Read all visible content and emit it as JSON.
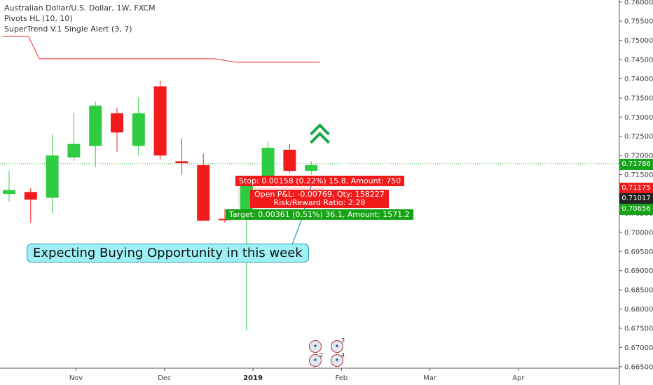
{
  "legend": {
    "title": "Australian Dollar/U.S. Dollar, 1W, FXCM",
    "indicator1": "Pivots HL (10, 10)",
    "indicator2": "SuperTrend V.1 Single Alert (3, 7)"
  },
  "chart_data": {
    "type": "candlestick",
    "ylim": [
      0.6646,
      0.7605
    ],
    "y_ticks": [
      "0.76000",
      "0.75500",
      "0.75000",
      "0.74500",
      "0.74000",
      "0.73500",
      "0.73000",
      "0.72500",
      "0.72000",
      "0.71500",
      "0.71000",
      "0.70500",
      "0.70000",
      "0.69500",
      "0.69000",
      "0.68500",
      "0.68000",
      "0.67500",
      "0.67000",
      "0.66500"
    ],
    "x_ticks": [
      {
        "label": "Nov",
        "bold": false,
        "week": 3.1
      },
      {
        "label": "Dec",
        "bold": false,
        "week": 7.2
      },
      {
        "label": "2019",
        "bold": true,
        "week": 11.3
      },
      {
        "label": "Feb",
        "bold": false,
        "week": 15.4
      },
      {
        "label": "Mar",
        "bold": false,
        "week": 19.5
      },
      {
        "label": "Apr",
        "bold": false,
        "week": 23.6
      }
    ],
    "candles": [
      {
        "o": 0.71,
        "h": 0.716,
        "l": 0.708,
        "c": 0.711,
        "color": "green"
      },
      {
        "o": 0.7105,
        "h": 0.7115,
        "l": 0.7025,
        "c": 0.7085,
        "color": "red"
      },
      {
        "o": 0.709,
        "h": 0.7255,
        "l": 0.705,
        "c": 0.72,
        "color": "green"
      },
      {
        "o": 0.7195,
        "h": 0.731,
        "l": 0.7185,
        "c": 0.723,
        "color": "green"
      },
      {
        "o": 0.7225,
        "h": 0.734,
        "l": 0.717,
        "c": 0.733,
        "color": "green"
      },
      {
        "o": 0.731,
        "h": 0.7325,
        "l": 0.721,
        "c": 0.726,
        "color": "red"
      },
      {
        "o": 0.7225,
        "h": 0.735,
        "l": 0.72,
        "c": 0.731,
        "color": "green"
      },
      {
        "o": 0.738,
        "h": 0.7395,
        "l": 0.719,
        "c": 0.72,
        "color": "red"
      },
      {
        "o": 0.7185,
        "h": 0.7245,
        "l": 0.715,
        "c": 0.718,
        "color": "red"
      },
      {
        "o": 0.7175,
        "h": 0.7205,
        "l": 0.703,
        "c": 0.703,
        "color": "red"
      },
      {
        "o": 0.7035,
        "h": 0.706,
        "l": 0.7025,
        "c": 0.7035,
        "color": "red"
      },
      {
        "o": 0.704,
        "h": 0.7125,
        "l": 0.6745,
        "c": 0.7125,
        "color": "green"
      },
      {
        "o": 0.7125,
        "h": 0.7235,
        "l": 0.712,
        "c": 0.722,
        "color": "green"
      },
      {
        "o": 0.7215,
        "h": 0.723,
        "l": 0.7155,
        "c": 0.716,
        "color": "red"
      },
      {
        "o": 0.716,
        "h": 0.7185,
        "l": 0.715,
        "c": 0.7175,
        "color": "green"
      }
    ],
    "supertrend": [
      [
        -0.3,
        0.751
      ],
      [
        0.9,
        0.751
      ],
      [
        1.4,
        0.7452
      ],
      [
        9.5,
        0.7452
      ],
      [
        10.5,
        0.7443
      ],
      [
        14.4,
        0.7443
      ]
    ],
    "current_price_line": 0.71786,
    "stop_level": 0.71175,
    "entry_level": 0.71017,
    "target_level": 0.70656,
    "signal": "double-chevron-up",
    "colors": {
      "up": "#2ecc40",
      "down": "#f21b1b",
      "supertrend": "#f05a5a",
      "price_line": "#3cb34a",
      "stop_zone": "#fbe2e2",
      "target_zone": "#dff4e3"
    }
  },
  "position": {
    "stop": "Stop: 0.00158 (0.22%) 15.8, Amount: 750",
    "pnl_line1": "Open P&L: -0.00769, Qty: 158227",
    "pnl_line2": "Risk/Reward Ratio: 2.28",
    "target": "Target: 0.00361 (0.51%) 36.1, Amount: 1571.2"
  },
  "callout": "Expecting Buying Opportunity in this week",
  "price_tags": {
    "current": "0.71786",
    "stop": "0.71175",
    "entry": "0.71017",
    "target": "0.70656"
  },
  "events": {
    "num_a": "3",
    "num_b": "2",
    "num_c": "4"
  }
}
